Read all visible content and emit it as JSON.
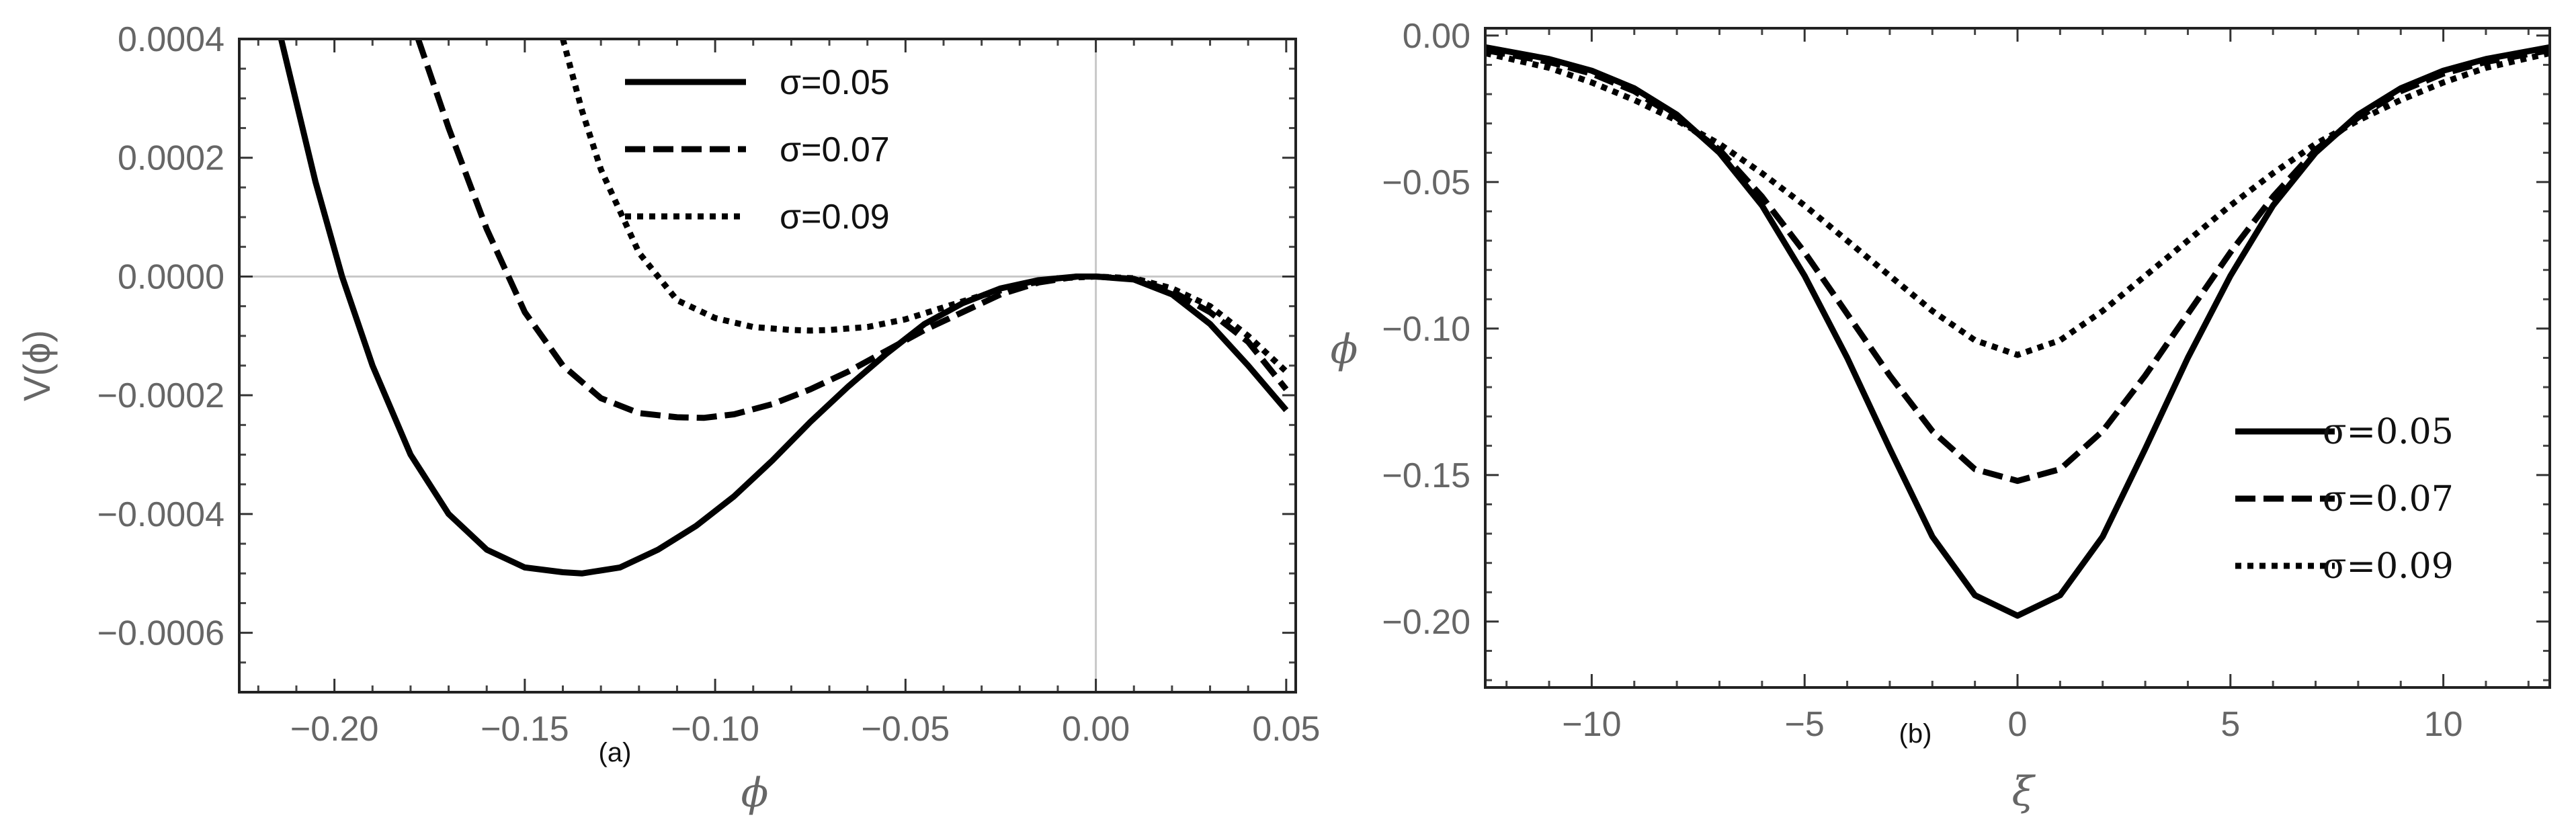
{
  "colors": {
    "series": "#000000",
    "axis_text": "#666666",
    "frame": "#222222",
    "gridline": "#c8c8c8"
  },
  "chart_data": [
    {
      "type": "line",
      "panel_label": "(a)",
      "xlabel": "ϕ",
      "ylabel": "V(ϕ)",
      "xlim": [
        -0.225,
        0.0525
      ],
      "ylim": [
        -0.0007,
        0.0004
      ],
      "x_ticks": [
        -0.2,
        -0.15,
        -0.1,
        -0.05,
        0.0,
        0.05
      ],
      "x_tick_labels": [
        "−0.20",
        "−0.15",
        "−0.10",
        "−0.05",
        "0.00",
        "0.05"
      ],
      "y_ticks": [
        0.0004,
        0.0002,
        0.0,
        -0.0002,
        -0.0004,
        -0.0006
      ],
      "y_tick_labels": [
        "0.0004",
        "0.0002",
        "0.0000",
        "−0.0002",
        "−0.0004",
        "−0.0006"
      ],
      "grid": false,
      "reference_lines": {
        "x": 0,
        "y": 0
      },
      "legend_position": "top-center",
      "series": [
        {
          "name": "σ=0.05",
          "style": "solid",
          "x": [
            -0.214,
            -0.205,
            -0.198,
            -0.19,
            -0.18,
            -0.17,
            -0.16,
            -0.15,
            -0.14,
            -0.135,
            -0.125,
            -0.115,
            -0.105,
            -0.095,
            -0.085,
            -0.075,
            -0.065,
            -0.055,
            -0.045,
            -0.035,
            -0.025,
            -0.015,
            -0.005,
            0.0,
            0.01,
            0.02,
            0.03,
            0.04,
            0.05
          ],
          "y": [
            0.0004,
            0.00016,
            0.0,
            -0.00015,
            -0.0003,
            -0.0004,
            -0.00046,
            -0.00049,
            -0.000498,
            -0.0005,
            -0.00049,
            -0.00046,
            -0.00042,
            -0.00037,
            -0.00031,
            -0.000245,
            -0.000185,
            -0.00013,
            -8e-05,
            -4.5e-05,
            -2e-05,
            -6e-06,
            0.0,
            0.0,
            -5e-06,
            -3e-05,
            -8e-05,
            -0.00015,
            -0.000225
          ]
        },
        {
          "name": "σ=0.07",
          "style": "dashed",
          "x": [
            -0.178,
            -0.17,
            -0.16,
            -0.15,
            -0.14,
            -0.13,
            -0.12,
            -0.11,
            -0.103,
            -0.095,
            -0.085,
            -0.075,
            -0.065,
            -0.055,
            -0.045,
            -0.035,
            -0.025,
            -0.015,
            -0.005,
            0.0,
            0.01,
            0.02,
            0.03,
            0.04,
            0.05
          ],
          "y": [
            0.0004,
            0.00025,
            8e-05,
            -6e-05,
            -0.00015,
            -0.000205,
            -0.00023,
            -0.000237,
            -0.000238,
            -0.000232,
            -0.000215,
            -0.00019,
            -0.00016,
            -0.000125,
            -9e-05,
            -6e-05,
            -3e-05,
            -1e-05,
            0.0,
            0.0,
            -4e-06,
            -2.5e-05,
            -6e-05,
            -0.00011,
            -0.00019
          ]
        },
        {
          "name": "σ=0.09",
          "style": "dotted",
          "x": [
            -0.14,
            -0.135,
            -0.13,
            -0.12,
            -0.11,
            -0.1,
            -0.09,
            -0.08,
            -0.075,
            -0.07,
            -0.06,
            -0.05,
            -0.04,
            -0.03,
            -0.02,
            -0.01,
            0.0,
            0.01,
            0.02,
            0.03,
            0.04,
            0.05
          ],
          "y": [
            0.0004,
            0.00028,
            0.00018,
            4e-05,
            -4e-05,
            -7e-05,
            -8.5e-05,
            -9e-05,
            -9.1e-05,
            -9e-05,
            -8.5e-05,
            -7.2e-05,
            -5.2e-05,
            -3.2e-05,
            -1.5e-05,
            -3e-06,
            0.0,
            -3e-06,
            -2e-05,
            -5e-05,
            -0.0001,
            -0.00016
          ]
        }
      ]
    },
    {
      "type": "line",
      "panel_label": "(b)",
      "xlabel": "ξ",
      "ylabel": "ϕ",
      "xlim": [
        -12.5,
        12.5
      ],
      "ylim": [
        -0.2225,
        0.0025
      ],
      "x_ticks": [
        -10,
        -5,
        0,
        5,
        10
      ],
      "x_tick_labels": [
        "−10",
        "−5",
        "0",
        "5",
        "10"
      ],
      "y_ticks": [
        0.0,
        -0.05,
        -0.1,
        -0.15,
        -0.2
      ],
      "y_tick_labels": [
        "0.00",
        "−0.05",
        "−0.10",
        "−0.15",
        "−0.20"
      ],
      "grid": false,
      "legend_position": "center-right",
      "series": [
        {
          "name": "σ=0.05",
          "style": "solid",
          "x": [
            -12.5,
            -11,
            -10,
            -9,
            -8,
            -7,
            -6,
            -5,
            -4,
            -3,
            -2,
            -1,
            0,
            1,
            2,
            3,
            4,
            5,
            6,
            7,
            8,
            9,
            10,
            11,
            12.5
          ],
          "y": [
            -0.004,
            -0.008,
            -0.012,
            -0.018,
            -0.027,
            -0.04,
            -0.058,
            -0.082,
            -0.11,
            -0.141,
            -0.171,
            -0.191,
            -0.198,
            -0.191,
            -0.171,
            -0.141,
            -0.11,
            -0.082,
            -0.058,
            -0.04,
            -0.027,
            -0.018,
            -0.012,
            -0.008,
            -0.004
          ]
        },
        {
          "name": "σ=0.07",
          "style": "dashed",
          "x": [
            -12.5,
            -11,
            -10,
            -9,
            -8,
            -7,
            -6,
            -5,
            -4,
            -3,
            -2,
            -1,
            0,
            1,
            2,
            3,
            4,
            5,
            6,
            7,
            8,
            9,
            10,
            11,
            12.5
          ],
          "y": [
            -0.005,
            -0.009,
            -0.013,
            -0.019,
            -0.028,
            -0.039,
            -0.055,
            -0.074,
            -0.095,
            -0.116,
            -0.135,
            -0.148,
            -0.152,
            -0.148,
            -0.135,
            -0.116,
            -0.095,
            -0.074,
            -0.055,
            -0.039,
            -0.028,
            -0.019,
            -0.013,
            -0.009,
            -0.005
          ]
        },
        {
          "name": "σ=0.09",
          "style": "dotted",
          "x": [
            -12.5,
            -11,
            -10,
            -9,
            -8,
            -7,
            -6,
            -5,
            -4,
            -3,
            -2,
            -1,
            0,
            1,
            2,
            3,
            4,
            5,
            6,
            7,
            8,
            9,
            10,
            11,
            12.5
          ],
          "y": [
            -0.006,
            -0.011,
            -0.016,
            -0.022,
            -0.029,
            -0.037,
            -0.047,
            -0.058,
            -0.07,
            -0.082,
            -0.094,
            -0.104,
            -0.109,
            -0.104,
            -0.094,
            -0.082,
            -0.07,
            -0.058,
            -0.047,
            -0.037,
            -0.029,
            -0.022,
            -0.016,
            -0.011,
            -0.006
          ]
        }
      ]
    }
  ]
}
